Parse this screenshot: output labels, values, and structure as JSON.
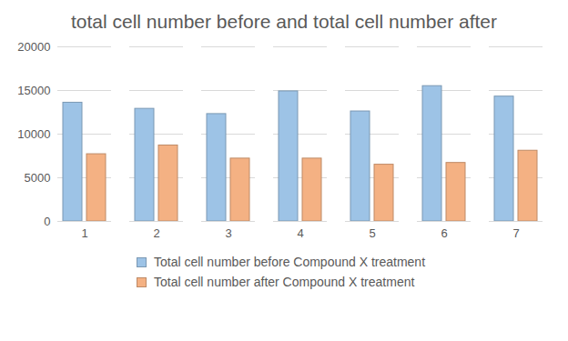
{
  "chart_data": {
    "type": "bar",
    "title": "total cell number before and total cell number after",
    "categories": [
      "1",
      "2",
      "3",
      "4",
      "5",
      "6",
      "7"
    ],
    "series": [
      {
        "name": "Total cell number before Compound X treatment",
        "color": "#9dc3e6",
        "values": [
          13600,
          12900,
          12300,
          14900,
          12600,
          15500,
          14300
        ]
      },
      {
        "name": "Total cell number after Compound X treatment",
        "color": "#f4b183",
        "values": [
          7700,
          8700,
          7200,
          7200,
          6500,
          6700,
          8100
        ]
      }
    ],
    "ylim": [
      0,
      20000
    ],
    "yticks": [
      0,
      5000,
      10000,
      15000,
      20000
    ],
    "grid": true,
    "legend": "bottom"
  }
}
